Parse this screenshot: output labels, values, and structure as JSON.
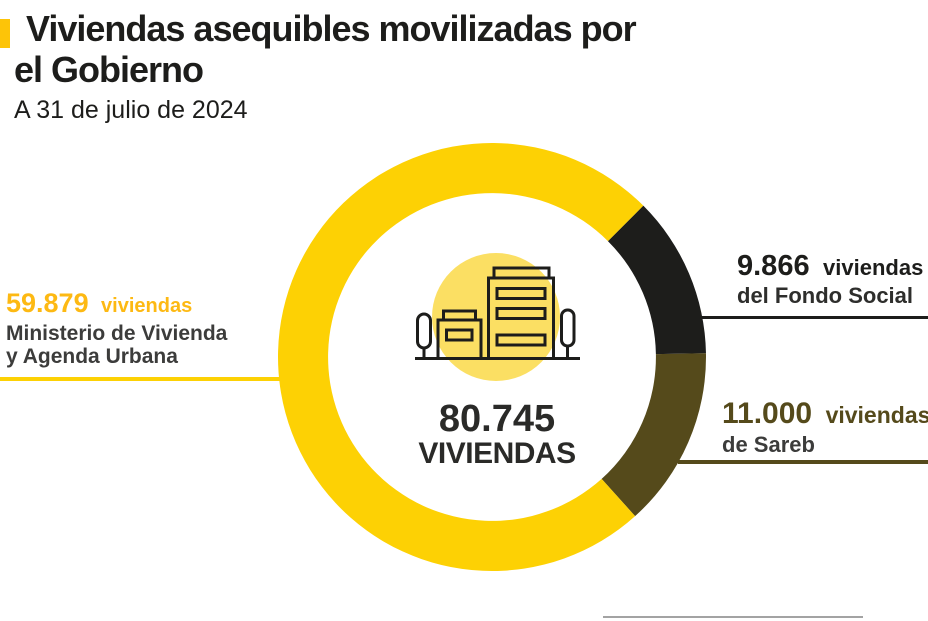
{
  "header": {
    "title_line1": "Viviendas asequibles movilizadas por",
    "title_line2": "el Gobierno",
    "subtitle": "A 31 de julio de 2024"
  },
  "donut_center": {
    "total_value": "80.745",
    "total_label": "VIVIENDAS",
    "icon": "buildings-icon"
  },
  "callouts": {
    "ministerio": {
      "value": "59.879",
      "unit": "viviendas",
      "label_line1": "Ministerio de Vivienda",
      "label_line2": "y Agenda Urbana"
    },
    "fondo_social": {
      "value": "9.866",
      "unit": "viviendas",
      "label": "del Fondo Social"
    },
    "sareb": {
      "value": "11.000",
      "unit": "viviendas",
      "label": "de Sareb"
    }
  },
  "colors": {
    "accent_yellow": "#FDC408",
    "ring_yellow": "#FDD104",
    "text_yellow": "#FDB913",
    "near_black": "#1D1D1B",
    "dark_gray": "#3C3C3B",
    "olive": "#554A1B",
    "light_yellow": "#FBDF63",
    "footer_gray": "#A3A3A3"
  },
  "chart_data": {
    "type": "pie",
    "variant": "donut",
    "title": "Viviendas asequibles movilizadas por el Gobierno",
    "subtitle": "A 31 de julio de 2024",
    "total": 80745,
    "center_label": "80.745 VIVIENDAS",
    "units": "viviendas",
    "start_angle_deg": 45,
    "inner_radius_ratio": 0.766,
    "legend_position": "callouts",
    "segments": [
      {
        "id": "fondo-social",
        "label": "del Fondo Social",
        "value": 9866,
        "color": "#1D1D1B"
      },
      {
        "id": "sareb",
        "label": "de Sareb",
        "value": 11000,
        "color": "#554A1B"
      },
      {
        "id": "ministerio",
        "label": "Ministerio de Vivienda y Agenda Urbana",
        "value": 59879,
        "color": "#FDD104"
      }
    ]
  }
}
